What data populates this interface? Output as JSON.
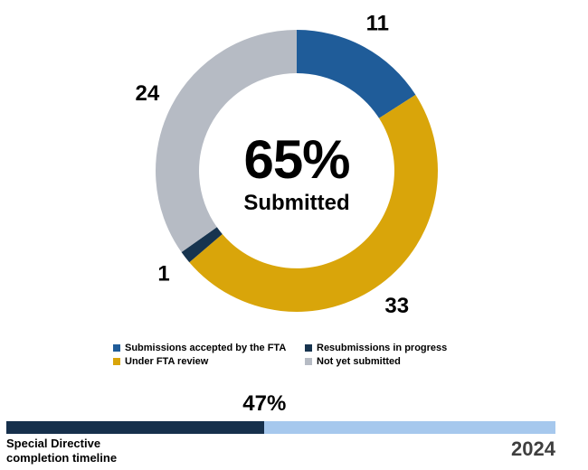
{
  "chart_data": [
    {
      "type": "donut",
      "direction": "clockwise",
      "start_angle_deg": 0,
      "center_value": "65%",
      "center_label": "Submitted",
      "segments": [
        {
          "label": "Submissions accepted by the FTA",
          "value": 11,
          "color": "#1F5C99"
        },
        {
          "label": "Under FTA review",
          "value": 33,
          "color": "#D9A50A"
        },
        {
          "label": "Resubmissions in progress",
          "value": 1,
          "color": "#17344F"
        },
        {
          "label": "Not yet submitted",
          "value": 24,
          "color": "#B6BBC4"
        }
      ]
    },
    {
      "type": "bar",
      "subtype": "progress-timeline",
      "percent": 47,
      "percent_label": "47%",
      "label_line1": "Special Directive",
      "label_line2": "completion timeline",
      "end_label": "2024",
      "fill_color": "#16304C",
      "track_color": "#A6C8ED"
    }
  ],
  "legend": {
    "items": [
      {
        "label": "Submissions accepted by the FTA",
        "color": "#1F5C99"
      },
      {
        "label": "Resubmissions in progress",
        "color": "#17344F"
      },
      {
        "label": "Under FTA review",
        "color": "#D9A50A"
      },
      {
        "label": "Not yet submitted",
        "color": "#B6BBC4"
      }
    ]
  }
}
